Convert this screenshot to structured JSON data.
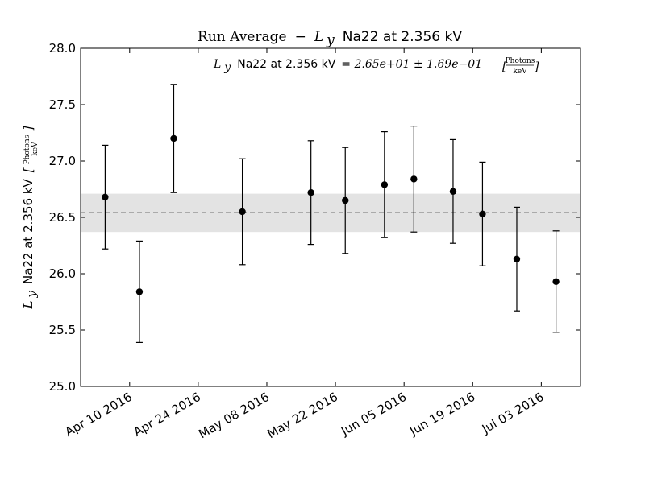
{
  "chart_data": {
    "type": "scatter",
    "title": {
      "prefix": "Run Average",
      "dash": "−",
      "symbol": "L",
      "subscript": "y",
      "suffix": "Na22 at 2.356 kV"
    },
    "annotation": {
      "symbol": "L",
      "subscript": "y",
      "label": "Na22 at 2.356 kV",
      "expression": "= 2.65e+01 ± 1.69e−01",
      "unit_numerator": "Photons",
      "unit_denominator": "keV"
    },
    "ylabel": {
      "symbol": "L",
      "subscript": "y",
      "label": "Na22 at 2.356 kV",
      "unit_numerator": "Photons",
      "unit_denominator": "keV"
    },
    "xlim": [
      "2016-03-31",
      "2016-07-11"
    ],
    "ylim": [
      25.0,
      28.0
    ],
    "yticks": [
      25.0,
      25.5,
      26.0,
      26.5,
      27.0,
      27.5,
      28.0
    ],
    "ytick_labels": [
      "25.0",
      "25.5",
      "26.0",
      "26.5",
      "27.0",
      "27.5",
      "28.0"
    ],
    "xticks": [
      "2016-04-10",
      "2016-04-24",
      "2016-05-08",
      "2016-05-22",
      "2016-06-05",
      "2016-06-19",
      "2016-07-03"
    ],
    "xtick_labels": [
      "Apr 10 2016",
      "Apr 24 2016",
      "May 08 2016",
      "May 22 2016",
      "Jun 05 2016",
      "Jun 19 2016",
      "Jul 03 2016"
    ],
    "mean": 26.54,
    "band": [
      26.37,
      26.71
    ],
    "points": [
      {
        "date": "2016-04-05",
        "y": 26.68,
        "err": 0.46
      },
      {
        "date": "2016-04-12",
        "y": 25.84,
        "err": 0.45
      },
      {
        "date": "2016-04-19",
        "y": 27.2,
        "err": 0.48
      },
      {
        "date": "2016-05-03",
        "y": 26.55,
        "err": 0.47
      },
      {
        "date": "2016-05-17",
        "y": 26.72,
        "err": 0.46
      },
      {
        "date": "2016-05-24",
        "y": 26.65,
        "err": 0.47
      },
      {
        "date": "2016-06-01",
        "y": 26.79,
        "err": 0.47
      },
      {
        "date": "2016-06-07",
        "y": 26.84,
        "err": 0.47
      },
      {
        "date": "2016-06-15",
        "y": 26.73,
        "err": 0.46
      },
      {
        "date": "2016-06-21",
        "y": 26.53,
        "err": 0.46
      },
      {
        "date": "2016-06-28",
        "y": 26.13,
        "err": 0.46
      },
      {
        "date": "2016-07-06",
        "y": 25.93,
        "err": 0.45
      }
    ],
    "colors": {
      "points": "#000000",
      "band": "#e3e3e3",
      "mean_line": "#000000"
    },
    "grid": false,
    "legend": "none"
  }
}
